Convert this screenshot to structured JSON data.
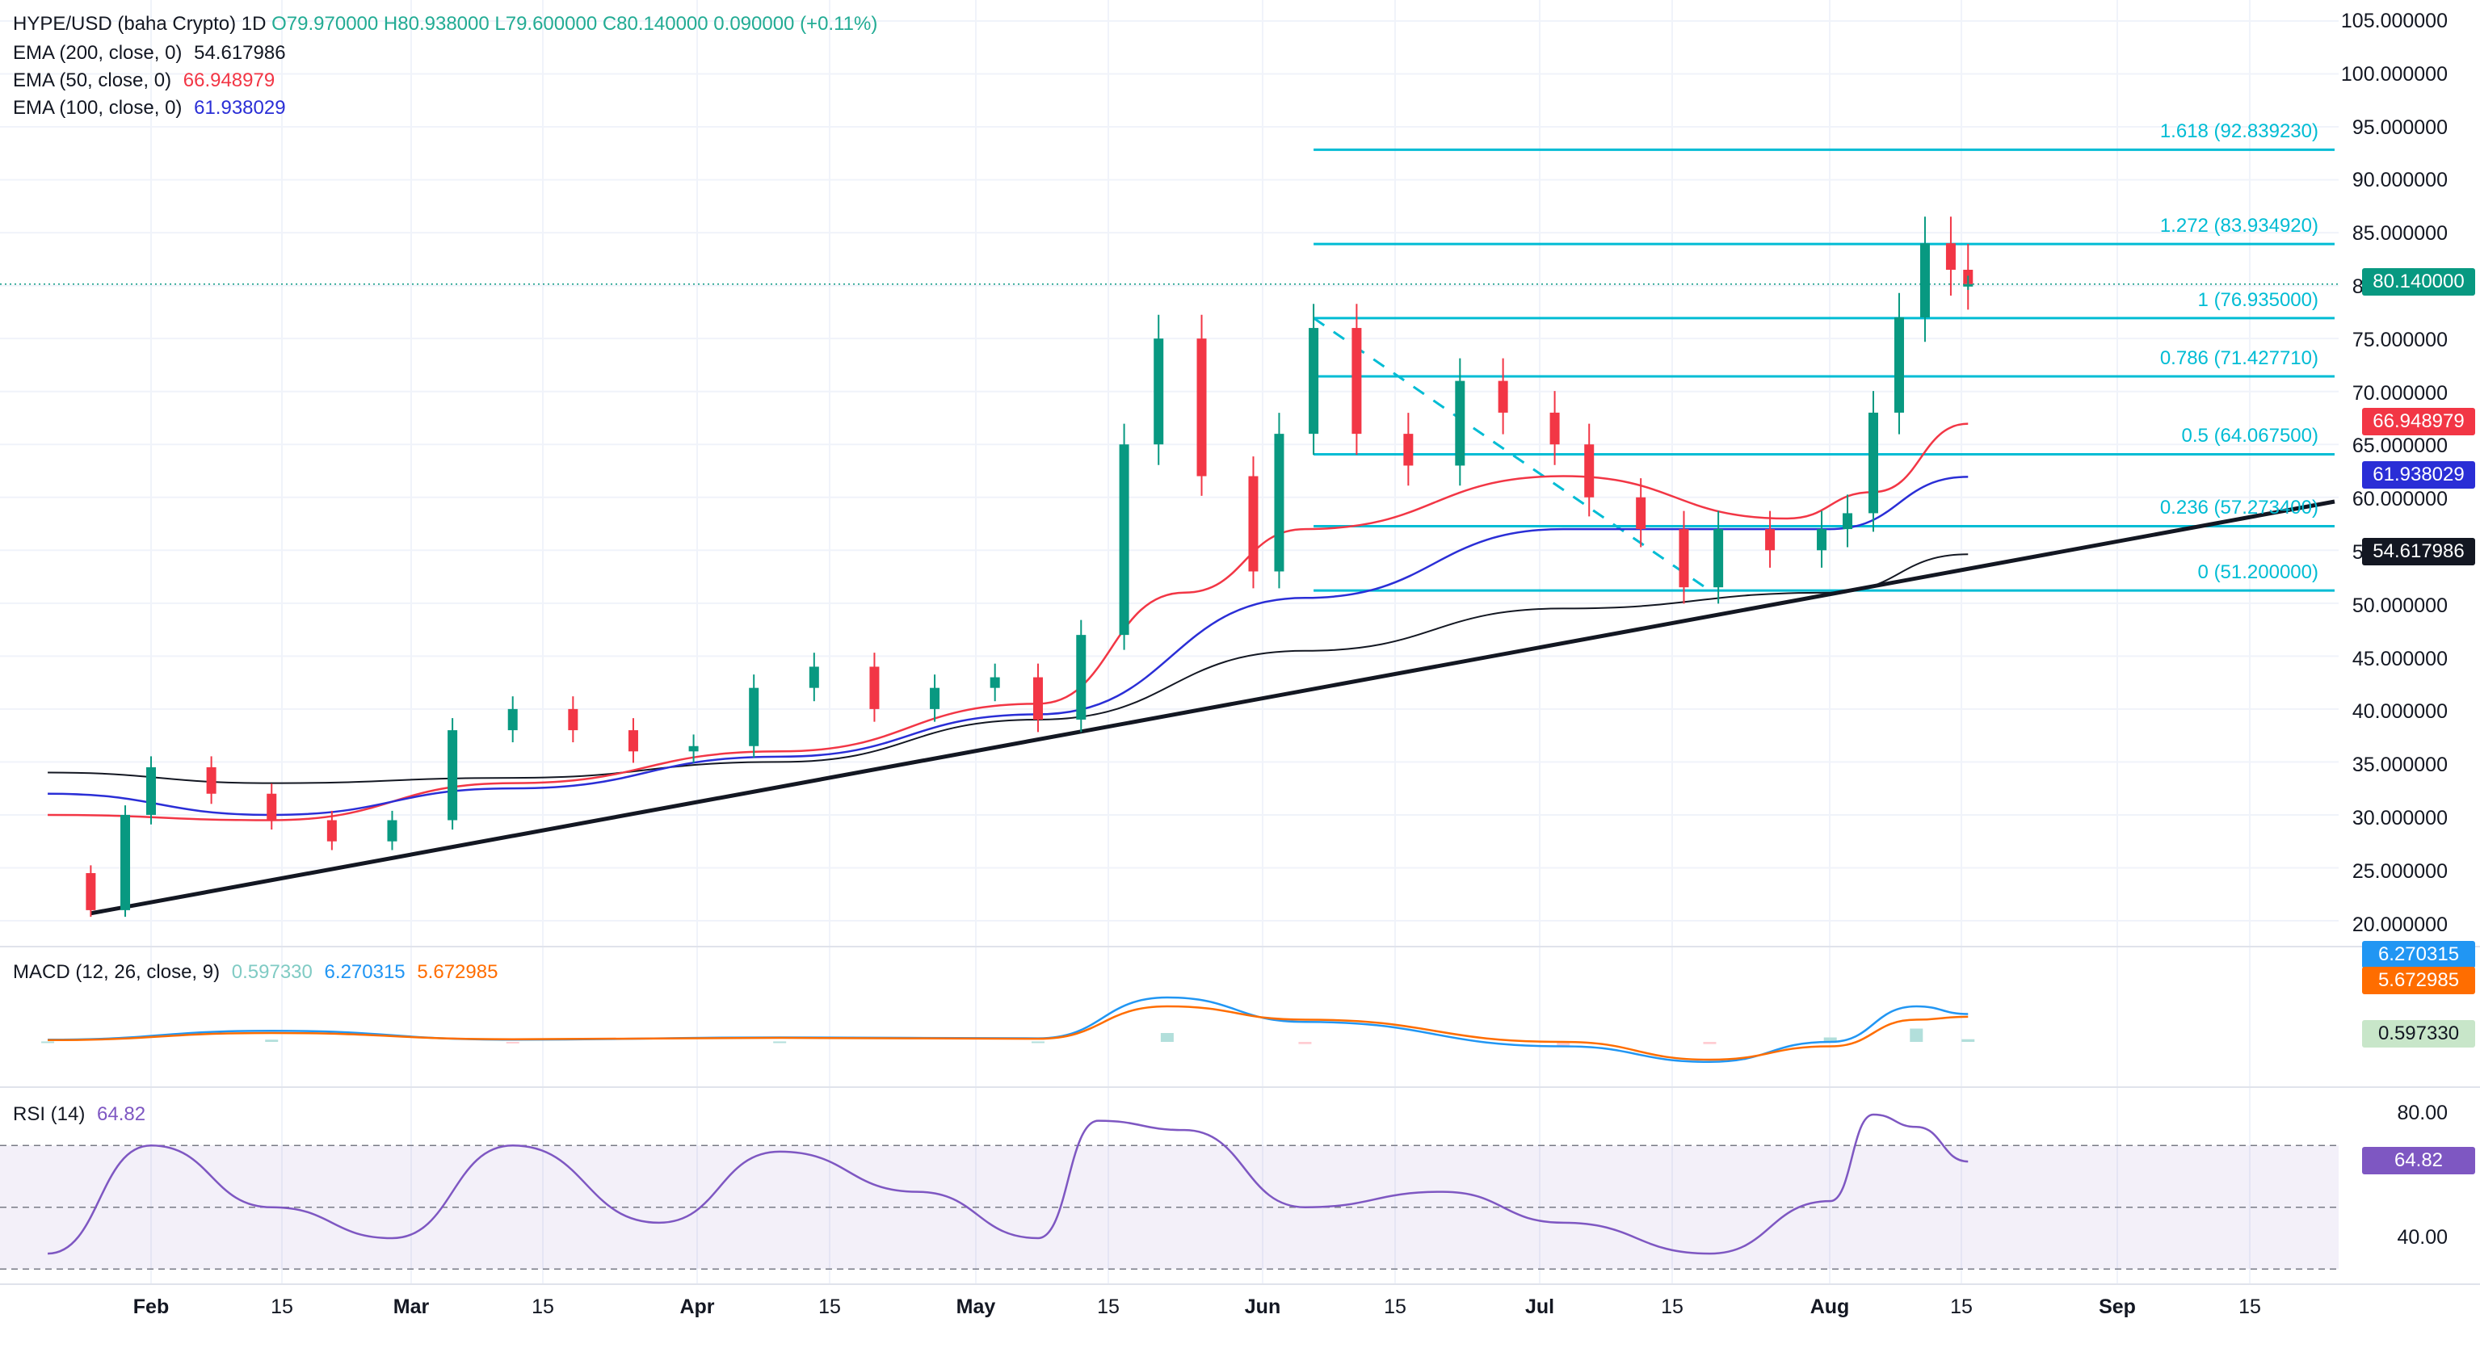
{
  "header": {
    "symbol": "HYPE/USD (baha Crypto)",
    "interval": "1D",
    "open": "O79.970000",
    "high": "H80.938000",
    "low": "L79.600000",
    "close": "C80.140000",
    "change": "0.090000 (+0.11%)"
  },
  "indicators": {
    "ema200": {
      "label": "EMA (200, close, 0)",
      "value": "54.617986",
      "color": "#131722"
    },
    "ema50": {
      "label": "EMA (50, close, 0)",
      "value": "66.948979",
      "color": "#f23645"
    },
    "ema100": {
      "label": "EMA (100, close, 0)",
      "value": "61.938029",
      "color": "#2a2ed6"
    }
  },
  "price_axis": {
    "ticks": [
      "105.000000",
      "100.000000",
      "95.000000",
      "90.000000",
      "85.000000",
      "80.000000",
      "75.000000",
      "70.000000",
      "65.000000",
      "60.000000",
      "55.000000",
      "50.000000",
      "45.000000",
      "40.000000",
      "35.000000",
      "30.000000",
      "25.000000",
      "20.000000"
    ],
    "last_price": "80.140000"
  },
  "fibonacci": [
    {
      "label": "1.618 (92.839230)",
      "level": 92.83923
    },
    {
      "label": "1.272 (83.934920)",
      "level": 83.93492
    },
    {
      "label": "1 (76.935000)",
      "level": 76.935
    },
    {
      "label": "0.786 (71.427710)",
      "level": 71.42771
    },
    {
      "label": "0.5 (64.067500)",
      "level": 64.0675
    },
    {
      "label": "0.236 (57.273400)",
      "level": 57.2734
    },
    {
      "label": "0 (51.200000)",
      "level": 51.2
    }
  ],
  "macd": {
    "label": "MACD (12, 26, close, 9)",
    "histogram": "0.597330",
    "macd": "6.270315",
    "signal": "5.672985",
    "colors": {
      "histogram": "#b2dfdb",
      "macd": "#2196f3",
      "signal": "#ff6d00"
    }
  },
  "rsi": {
    "label": "RSI (14)",
    "value": "64.82",
    "ticks": [
      "80.00",
      "40.00"
    ],
    "color": "#7e57c2"
  },
  "time_axis": [
    {
      "label": "Feb",
      "major": true
    },
    {
      "label": "15",
      "major": false
    },
    {
      "label": "Mar",
      "major": true
    },
    {
      "label": "15",
      "major": false
    },
    {
      "label": "Apr",
      "major": true
    },
    {
      "label": "15",
      "major": false
    },
    {
      "label": "May",
      "major": true
    },
    {
      "label": "15",
      "major": false
    },
    {
      "label": "Jun",
      "major": true
    },
    {
      "label": "15",
      "major": false
    },
    {
      "label": "Jul",
      "major": true
    },
    {
      "label": "15",
      "major": false
    },
    {
      "label": "Aug",
      "major": true
    },
    {
      "label": "15",
      "major": false
    },
    {
      "label": "Sep",
      "major": true
    },
    {
      "label": "15",
      "major": false
    }
  ],
  "chart_data": {
    "type": "line",
    "title": "HYPE/USD (baha Crypto)",
    "interval": "1D",
    "ylim": [
      18,
      106
    ],
    "x_labels": [
      "Feb",
      "15",
      "Mar",
      "15",
      "Apr",
      "15",
      "May",
      "15",
      "Jun",
      "15",
      "Jul",
      "15",
      "Aug",
      "15",
      "Sep",
      "15"
    ],
    "series": [
      {
        "name": "HYPE/USD",
        "x": [
          "2025-01-20",
          "2025-01-25",
          "2025-01-29",
          "2025-02-01",
          "2025-02-08",
          "2025-02-15",
          "2025-02-22",
          "2025-03-01",
          "2025-03-08",
          "2025-03-15",
          "2025-03-22",
          "2025-03-29",
          "2025-04-05",
          "2025-04-12",
          "2025-04-19",
          "2025-04-26",
          "2025-05-03",
          "2025-05-10",
          "2025-05-15",
          "2025-05-20",
          "2025-05-25",
          "2025-05-29",
          "2025-06-03",
          "2025-06-09",
          "2025-06-12",
          "2025-06-16",
          "2025-06-21",
          "2025-06-27",
          "2025-07-03",
          "2025-07-08",
          "2025-07-14",
          "2025-07-18",
          "2025-07-24",
          "2025-07-29",
          "2025-08-02",
          "2025-08-08",
          "2025-08-14",
          "2025-08-17",
          "2025-08-20",
          "2025-08-23",
          "2025-08-26",
          "2025-08-29",
          "2025-08-31"
        ],
        "values": [
          24.5,
          21.0,
          30.0,
          34.5,
          32.0,
          29.5,
          27.5,
          29.5,
          38.0,
          40.0,
          38.0,
          36.0,
          36.5,
          42.0,
          44.0,
          40.0,
          42.0,
          43.0,
          39.0,
          47.0,
          65.0,
          75.0,
          62.0,
          53.0,
          66.0,
          76.0,
          66.0,
          63.0,
          71.0,
          68.0,
          65.0,
          60.0,
          57.0,
          51.5,
          57.0,
          55.0,
          57.0,
          58.5,
          68.0,
          77.0,
          84.0,
          81.5,
          80.14
        ]
      },
      {
        "name": "EMA (200, close, 0)",
        "x": [
          "2025-01-20",
          "2025-02-15",
          "2025-03-15",
          "2025-04-15",
          "2025-05-15",
          "2025-06-15",
          "2025-07-15",
          "2025-08-15",
          "2025-08-31"
        ],
        "values": [
          34.0,
          33.0,
          33.5,
          35.0,
          39.0,
          45.5,
          49.5,
          51.0,
          54.62
        ]
      },
      {
        "name": "EMA (50, close, 0)",
        "x": [
          "2025-01-20",
          "2025-02-15",
          "2025-03-15",
          "2025-04-15",
          "2025-05-15",
          "2025-06-01",
          "2025-06-15",
          "2025-07-15",
          "2025-08-10",
          "2025-08-20",
          "2025-08-31"
        ],
        "values": [
          30.0,
          29.5,
          33.0,
          36.0,
          40.5,
          51.0,
          57.0,
          62.0,
          58.0,
          60.5,
          66.95
        ]
      },
      {
        "name": "EMA (100, close, 0)",
        "x": [
          "2025-01-20",
          "2025-02-15",
          "2025-03-15",
          "2025-04-15",
          "2025-05-15",
          "2025-06-15",
          "2025-07-15",
          "2025-08-15",
          "2025-08-31"
        ],
        "values": [
          32.0,
          30.0,
          32.5,
          35.5,
          39.5,
          50.5,
          57.0,
          57.0,
          61.94
        ]
      }
    ]
  }
}
